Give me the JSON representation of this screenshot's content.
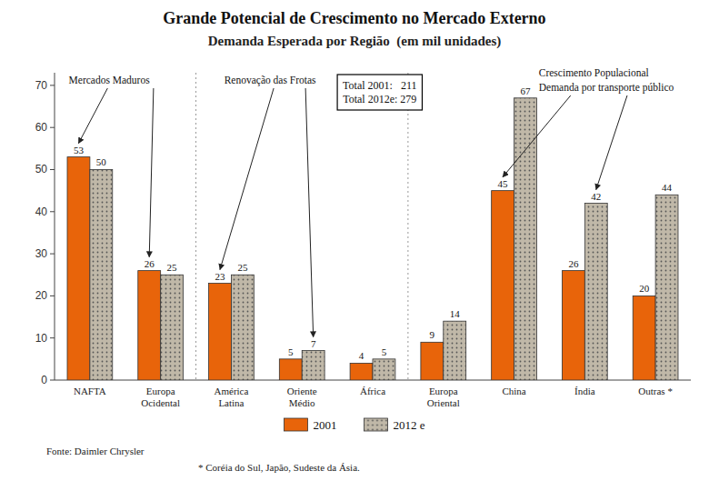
{
  "chart_data": {
    "type": "bar",
    "title": "Grande Potencial de Crescimento no Mercado Externo",
    "subtitle": "Demanda Esperada por Região  (em mil unidades)",
    "categories": [
      "NAFTA",
      "Europa\nOcidental",
      "América\nLatina",
      "Oriente\nMédio",
      "África",
      "Europa\nOriental",
      "China",
      "Índia",
      "Outras *"
    ],
    "series": [
      {
        "name": "2001",
        "color": "#E8640A",
        "values": [
          53,
          26,
          23,
          5,
          4,
          9,
          45,
          26,
          20
        ]
      },
      {
        "name": "2012 e",
        "color": "#C0B8A8",
        "values": [
          50,
          25,
          25,
          7,
          5,
          14,
          67,
          42,
          44
        ]
      }
    ],
    "ylim": [
      0,
      73
    ],
    "yticks": [
      0,
      10,
      20,
      30,
      40,
      50,
      60,
      70
    ],
    "grid": false,
    "legend": "bottom",
    "data_labels": true,
    "annotations": [
      "Mercados Maduros",
      "Renovação das Frotas",
      "Crescimento Populacional",
      "Demanda por transporte público",
      "Total 2001:   211\nTotal 2012e: 279"
    ],
    "source": "Fonte: Daimler Chrysler",
    "footnote": "* Coréia do Sul, Japão, Sudeste da Ásia."
  }
}
